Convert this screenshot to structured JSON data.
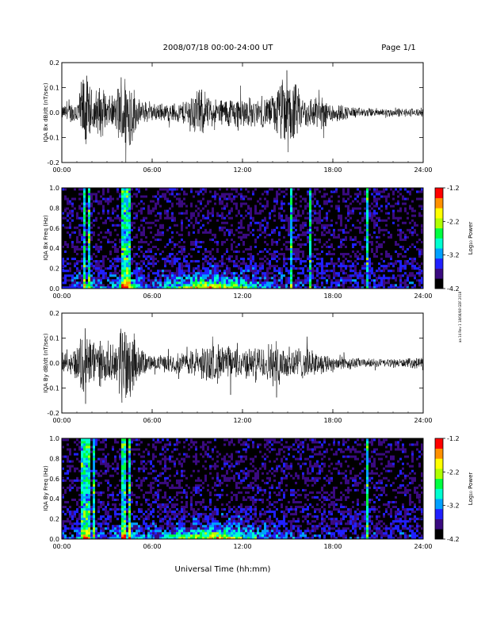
{
  "header": {
    "title": "2008/07/18  00:00-24:00 UT",
    "page": "Page 1/1"
  },
  "xlabel": "Universal Time (hh:mm)",
  "side_note": "aa 14 Rev 1 18/08/08 GDF 2018",
  "colorbar": {
    "label": "Log₁₀ Power",
    "ticks": [
      "-1.2",
      "-2.2",
      "-3.2",
      "-4.2"
    ],
    "range": [
      -4.2,
      -1.2
    ],
    "colors": [
      "#000000",
      "#3a0a80",
      "#2020ff",
      "#00a0ff",
      "#00ffd0",
      "#00ff40",
      "#b0ff00",
      "#ffff00",
      "#ff9000",
      "#ff0000"
    ]
  },
  "chart_data": [
    {
      "type": "line",
      "ylabel": "IQA Bx dB/dt (nT/sec)",
      "xlim": [
        0,
        24
      ],
      "ylim": [
        -0.2,
        0.2
      ],
      "x_tick_labels": [
        "00:00",
        "06:00",
        "12:00",
        "18:00",
        "24:00"
      ],
      "y_tick_labels": [
        "0.2",
        "0.1",
        "0.0",
        "-0.1",
        "-0.2"
      ],
      "series": [
        {
          "envelope_hours": [
            0,
            1,
            1.5,
            2,
            2.5,
            3,
            3.5,
            4,
            4.5,
            5,
            6,
            7,
            8,
            9,
            10,
            11,
            12,
            13,
            14,
            15,
            16,
            17,
            18,
            19,
            20,
            21,
            22,
            23,
            24
          ],
          "envelope_amplitude": [
            0.03,
            0.06,
            0.2,
            0.1,
            0.12,
            0.08,
            0.07,
            0.2,
            0.2,
            0.06,
            0.04,
            0.04,
            0.05,
            0.12,
            0.06,
            0.07,
            0.08,
            0.06,
            0.08,
            0.2,
            0.07,
            0.08,
            0.05,
            0.03,
            0.02,
            0.02,
            0.02,
            0.02,
            0.02
          ]
        }
      ]
    },
    {
      "type": "heatmap",
      "ylabel": "IQA Bx Freq (Hz)",
      "xlim": [
        0,
        24
      ],
      "ylim": [
        0,
        1.0
      ],
      "x_tick_labels": [
        "00:00",
        "06:00",
        "12:00",
        "18:00",
        "24:00"
      ],
      "y_tick_labels": [
        "1.0",
        "0.8",
        "0.6",
        "0.4",
        "0.2",
        "0.0"
      ],
      "bright_hours": [
        1.5,
        1.8,
        4.1,
        4.4,
        15.2,
        16.5,
        20.3
      ]
    },
    {
      "type": "line",
      "ylabel": "IQA By dB/dt (nT/sec)",
      "xlim": [
        0,
        24
      ],
      "ylim": [
        -0.2,
        0.2
      ],
      "x_tick_labels": [
        "00:00",
        "06:00",
        "12:00",
        "18:00",
        "24:00"
      ],
      "y_tick_labels": [
        "0.2",
        "0.1",
        "0.0",
        "-0.1",
        "-0.2"
      ],
      "series": [
        {
          "envelope_hours": [
            0,
            1,
            1.5,
            2,
            2.5,
            3,
            3.5,
            4,
            4.5,
            5,
            6,
            7,
            8,
            9,
            10,
            11,
            12,
            13,
            14,
            15,
            16,
            17,
            18,
            19,
            20,
            21,
            22,
            23,
            24
          ],
          "envelope_amplitude": [
            0.03,
            0.08,
            0.2,
            0.12,
            0.1,
            0.08,
            0.08,
            0.2,
            0.2,
            0.08,
            0.03,
            0.04,
            0.05,
            0.07,
            0.09,
            0.08,
            0.07,
            0.07,
            0.1,
            0.09,
            0.07,
            0.05,
            0.04,
            0.03,
            0.02,
            0.02,
            0.02,
            0.02,
            0.03
          ]
        }
      ]
    },
    {
      "type": "heatmap",
      "ylabel": "IQA By Freq (Hz)",
      "xlim": [
        0,
        24
      ],
      "ylim": [
        0,
        1.0
      ],
      "x_tick_labels": [
        "00:00",
        "06:00",
        "12:00",
        "18:00",
        "24:00"
      ],
      "y_tick_labels": [
        "1.0",
        "0.8",
        "0.6",
        "0.4",
        "0.2",
        "0.0"
      ],
      "bright_hours": [
        1.4,
        1.7,
        2.1,
        4.1,
        4.5,
        20.3
      ]
    }
  ]
}
